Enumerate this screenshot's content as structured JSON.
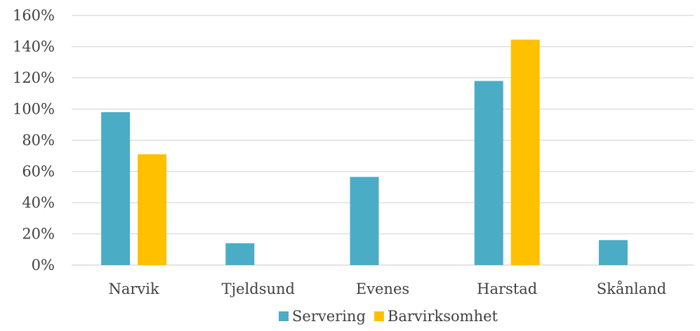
{
  "chart_data": {
    "type": "bar",
    "categories": [
      "Narvik",
      "Tjeldsund",
      "Evenes",
      "Harstad",
      "Skånland"
    ],
    "series": [
      {
        "name": "Servering",
        "values": [
          0.98,
          0.14,
          0.565,
          1.18,
          0.16
        ],
        "color": "#4BACC6"
      },
      {
        "name": "Barvirksomhet",
        "values": [
          0.71,
          null,
          null,
          1.445,
          null
        ],
        "color": "#FFC000"
      }
    ],
    "y_ticks": [
      "0%",
      "20%",
      "40%",
      "60%",
      "80%",
      "100%",
      "120%",
      "140%",
      "160%"
    ],
    "ylim": [
      0,
      1.6
    ],
    "grid": true,
    "legend_position": "bottom",
    "title": "",
    "xlabel": "",
    "ylabel": ""
  }
}
